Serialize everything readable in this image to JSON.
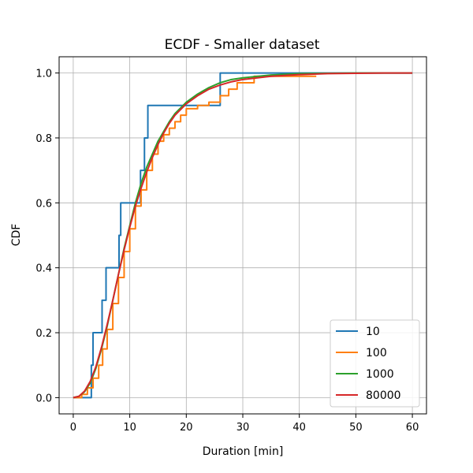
{
  "chart_data": {
    "type": "line",
    "title": "ECDF - Smaller dataset",
    "xlabel": "Duration [min]",
    "ylabel": "CDF",
    "xlim": [
      -2.5,
      62.5
    ],
    "ylim": [
      -0.05,
      1.05
    ],
    "xticks": [
      0,
      10,
      20,
      30,
      40,
      50,
      60
    ],
    "yticks": [
      0.0,
      0.2,
      0.4,
      0.6,
      0.8,
      1.0
    ],
    "xtick_labels": [
      "0",
      "10",
      "20",
      "30",
      "40",
      "50",
      "60"
    ],
    "ytick_labels": [
      "0.0",
      "0.2",
      "0.4",
      "0.6",
      "0.8",
      "1.0"
    ],
    "grid": true,
    "legend_position": "lower-right",
    "series": [
      {
        "name": "10",
        "color": "#1f77b4",
        "step": true,
        "x": [
          0,
          3.0,
          3.2,
          3.5,
          5.1,
          5.8,
          8.1,
          8.4,
          11.9,
          12.6,
          13.2,
          26.0,
          60
        ],
        "y": [
          0,
          0.0,
          0.1,
          0.2,
          0.3,
          0.4,
          0.5,
          0.6,
          0.7,
          0.8,
          0.9,
          1.0,
          1.0
        ]
      },
      {
        "name": "100",
        "color": "#ff7f0e",
        "step": true,
        "x": [
          0,
          1.5,
          2.5,
          3.5,
          4.5,
          5.2,
          6.0,
          7.0,
          8.0,
          9.0,
          10.0,
          11.0,
          12.0,
          13.0,
          14.0,
          15.0,
          16.0,
          17.0,
          18.0,
          19.0,
          20.0,
          22.0,
          24.0,
          26.0,
          27.5,
          29.0,
          32.0,
          43.0
        ],
        "y": [
          0,
          0.01,
          0.03,
          0.06,
          0.1,
          0.15,
          0.21,
          0.29,
          0.37,
          0.45,
          0.52,
          0.59,
          0.64,
          0.7,
          0.75,
          0.79,
          0.81,
          0.83,
          0.85,
          0.87,
          0.89,
          0.9,
          0.91,
          0.93,
          0.95,
          0.97,
          0.99,
          0.99
        ]
      },
      {
        "name": "1000",
        "color": "#2ca02c",
        "step": false,
        "x": [
          0,
          1,
          2,
          3,
          4,
          5,
          6,
          7,
          8,
          9,
          10,
          11,
          12,
          13,
          14,
          15,
          16,
          17,
          18,
          20,
          22,
          24,
          26,
          28,
          30,
          35,
          40,
          50,
          60
        ],
        "y": [
          0,
          0.004,
          0.018,
          0.045,
          0.09,
          0.15,
          0.22,
          0.3,
          0.38,
          0.46,
          0.53,
          0.6,
          0.66,
          0.71,
          0.75,
          0.79,
          0.82,
          0.85,
          0.875,
          0.91,
          0.935,
          0.955,
          0.97,
          0.98,
          0.985,
          0.994,
          0.998,
          1.0,
          1.0
        ]
      },
      {
        "name": "80000",
        "color": "#d62728",
        "step": false,
        "x": [
          0,
          1,
          2,
          3,
          4,
          5,
          6,
          7,
          8,
          9,
          10,
          11,
          12,
          13,
          14,
          15,
          16,
          17,
          18,
          20,
          22,
          24,
          26,
          28,
          30,
          35,
          40,
          45,
          50,
          55,
          60
        ],
        "y": [
          0,
          0.004,
          0.02,
          0.05,
          0.095,
          0.155,
          0.225,
          0.3,
          0.38,
          0.455,
          0.525,
          0.59,
          0.645,
          0.695,
          0.74,
          0.78,
          0.815,
          0.845,
          0.87,
          0.905,
          0.93,
          0.95,
          0.963,
          0.973,
          0.98,
          0.99,
          0.995,
          0.998,
          0.999,
          1.0,
          1.0
        ]
      }
    ]
  }
}
